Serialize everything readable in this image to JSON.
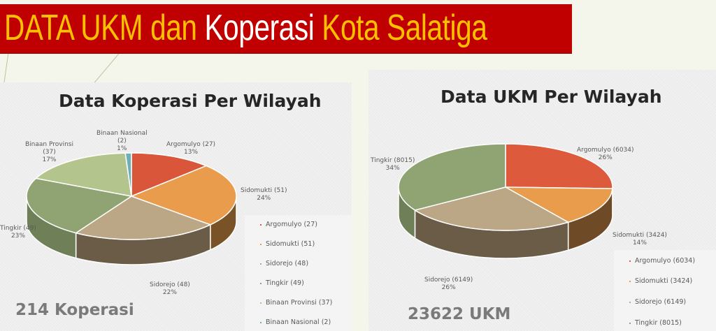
{
  "banner": {
    "part1": "DATA UKM dan ",
    "part2": "Koperasi",
    "part3": " Kota Salatiga"
  },
  "chart_data": [
    {
      "type": "pie",
      "title": "Data Koperasi Per Wilayah",
      "categories": [
        "Argomulyo",
        "Sidomukti",
        "Sidorejo",
        "Tingkir",
        "Binaan Provinsi",
        "Binaan Nasional"
      ],
      "values": [
        27,
        51,
        48,
        49,
        37,
        2
      ],
      "percent_labels": [
        "13%",
        "24%",
        "22%",
        "23%",
        "17%",
        "1%"
      ],
      "data_labels": [
        "Argomulyo (27)",
        "Sidomukti (51)",
        "Sidorejo (48)",
        "Tingkir (49)",
        "Binaan Provinsi (37)",
        "Binaan Nasional (2)"
      ],
      "colors": [
        "#d9563a",
        "#e99d4c",
        "#bba685",
        "#8fa472",
        "#b3c58c",
        "#6fb0b6"
      ],
      "side_colors": [
        "#8a3020",
        "#7a5228",
        "#6b5c48",
        "#6f7f57",
        "#7e8f5e",
        "#3f7c82"
      ],
      "legend": [
        "Argomulyo (27)",
        "Sidomukti (51)",
        "Sidorejo (48)",
        "Tingkir (49)",
        "Binaan Provinsi (37)",
        "Binaan Nasional (2)"
      ],
      "legend_position": "right",
      "total": "214 Koperasi"
    },
    {
      "type": "pie",
      "title": "Data UKM Per Wilayah",
      "categories": [
        "Argomulyo",
        "Sidomukti",
        "Sidorejo",
        "Tingkir"
      ],
      "values": [
        6034,
        3424,
        6149,
        8015
      ],
      "percent_labels": [
        "26%",
        "14%",
        "26%",
        "34%"
      ],
      "data_labels": [
        "Argomulyo (6034)",
        "Sidomukti (3424)",
        "Sidorejo (6149)",
        "Tingkir (8015)"
      ],
      "colors": [
        "#dd5a3c",
        "#e99d4c",
        "#bba685",
        "#8fa472"
      ],
      "side_colors": [
        "#8a3020",
        "#6e4a26",
        "#6b5c48",
        "#6f7f57"
      ],
      "legend": [
        "Argomulyo (6034)",
        "Sidomukti (3424)",
        "Sidorejo (6149)",
        "Tingkir (8015)"
      ],
      "legend_position": "bottom-right",
      "total": "23622 UKM"
    }
  ]
}
